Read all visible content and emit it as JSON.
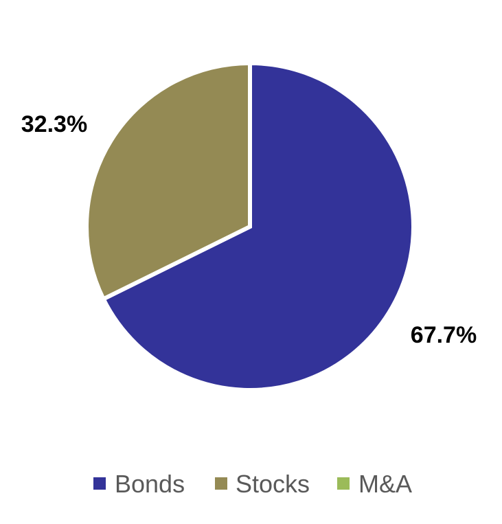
{
  "chart_data": {
    "type": "pie",
    "start_angle_deg": 0,
    "direction": "clockwise",
    "legend_position": "bottom",
    "slices": [
      {
        "name": "Bonds",
        "value": 67.7,
        "label": "67.7%",
        "color": "#333399"
      },
      {
        "name": "Stocks",
        "value": 32.3,
        "label": "32.3%",
        "color": "#948A54"
      },
      {
        "name": "M&A",
        "value": 0,
        "label": "",
        "color": "#9BBB59"
      }
    ]
  }
}
